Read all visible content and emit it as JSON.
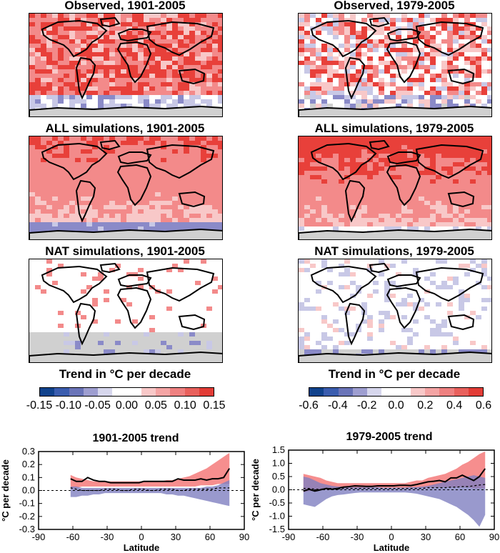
{
  "colors": {
    "land": "#d0d0d0",
    "ocean_blank": "#ffffff",
    "warm_dark": "#e8403a",
    "warm_mid": "#f38a8a",
    "warm_light": "#f8c8c8",
    "cool_light": "#c8c8e6",
    "cool_mid": "#8a8ac8",
    "cool_dark": "#1e4aa0",
    "band_pos": "#f57a7a",
    "band_neg": "#8080c0",
    "band_overlap": "#c88ab4"
  },
  "maps": [
    {
      "title": "Observed, 1901-2005",
      "pattern": "obs_long"
    },
    {
      "title": "Observed, 1979-2005",
      "pattern": "obs_short"
    },
    {
      "title": "ALL simulations, 1901-2005",
      "pattern": "all_long"
    },
    {
      "title": "ALL simulations, 1979-2005",
      "pattern": "all_short"
    },
    {
      "title": "NAT simulations, 1901-2005",
      "pattern": "nat_long"
    },
    {
      "title": "NAT simulations, 1979-2005",
      "pattern": "nat_short"
    }
  ],
  "colorbars": [
    {
      "title": "Trend in °C per decade",
      "ticks": [
        "-0.15",
        "-0.10",
        "-0.05",
        "0.00",
        "0.05",
        "0.10",
        "0.15"
      ],
      "colors": [
        "#10428c",
        "#3a5cae",
        "#6a74b8",
        "#9e9ed0",
        "#d6d6ec",
        "#ffffff",
        "#ffffff",
        "#f8c8c8",
        "#f4a4a4",
        "#ee8080",
        "#e8605c",
        "#e23c36"
      ]
    },
    {
      "title": "Trend in °C per decade",
      "ticks": [
        "-0.6",
        "-0.4",
        "-0.2",
        "0.0",
        "0.2",
        "0.4",
        "0.6"
      ],
      "colors": [
        "#10428c",
        "#3a5cae",
        "#6a74b8",
        "#9e9ed0",
        "#d6d6ec",
        "#ffffff",
        "#ffffff",
        "#f8c8c8",
        "#f4a4a4",
        "#ee8080",
        "#e8605c",
        "#e23c36"
      ]
    }
  ],
  "chart_data": [
    {
      "type": "line",
      "title": "1901-2005 trend",
      "xlabel": "Latitude",
      "ylabel": "°C per decade",
      "xlim": [
        -90,
        90
      ],
      "ylim": [
        -0.3,
        0.3
      ],
      "xticks": [
        "-90",
        "-60",
        "-30",
        "0",
        "30",
        "60",
        "90"
      ],
      "yticks": [
        "-0.3",
        "-0.2",
        "-0.1",
        "0.0",
        "0.1",
        "0.2",
        "0.3"
      ],
      "x": [
        -62,
        -57,
        -52,
        -47,
        -42,
        -37,
        -32,
        -27,
        -22,
        -17,
        -12,
        -7,
        -2,
        2,
        7,
        12,
        17,
        22,
        27,
        32,
        37,
        42,
        47,
        52,
        57,
        62,
        67,
        72,
        77
      ],
      "observed": [
        0.09,
        0.07,
        0.07,
        0.1,
        0.08,
        0.07,
        0.07,
        0.06,
        0.06,
        0.06,
        0.06,
        0.06,
        0.06,
        0.07,
        0.07,
        0.07,
        0.07,
        0.07,
        0.07,
        0.09,
        0.08,
        0.08,
        0.08,
        0.09,
        0.08,
        0.09,
        0.09,
        0.1,
        0.17
      ],
      "all_band": {
        "upper": [
          0.12,
          0.1,
          0.09,
          0.08,
          0.07,
          0.07,
          0.07,
          0.07,
          0.07,
          0.07,
          0.07,
          0.07,
          0.07,
          0.07,
          0.07,
          0.07,
          0.07,
          0.08,
          0.08,
          0.09,
          0.1,
          0.11,
          0.13,
          0.15,
          0.17,
          0.2,
          0.23,
          0.26,
          0.29
        ],
        "lower": [
          0.02,
          0.02,
          0.03,
          0.03,
          0.03,
          0.03,
          0.03,
          0.03,
          0.03,
          0.03,
          0.03,
          0.03,
          0.03,
          0.03,
          0.03,
          0.03,
          0.03,
          0.03,
          0.03,
          0.03,
          0.03,
          0.03,
          0.03,
          0.04,
          0.04,
          0.04,
          0.05,
          0.05,
          0.05
        ]
      },
      "nat_band": {
        "upper": [
          0.03,
          0.03,
          0.02,
          0.02,
          0.02,
          0.02,
          0.02,
          0.02,
          0.02,
          0.02,
          0.02,
          0.02,
          0.02,
          0.02,
          0.02,
          0.02,
          0.02,
          0.02,
          0.02,
          0.02,
          0.02,
          0.02,
          0.02,
          0.02,
          0.03,
          0.03,
          0.04,
          0.06,
          0.08
        ],
        "lower": [
          -0.05,
          -0.05,
          -0.04,
          -0.04,
          -0.03,
          -0.03,
          -0.02,
          -0.02,
          -0.02,
          -0.02,
          -0.02,
          -0.02,
          -0.02,
          -0.02,
          -0.02,
          -0.02,
          -0.02,
          -0.03,
          -0.03,
          -0.04,
          -0.04,
          -0.05,
          -0.06,
          -0.07,
          -0.08,
          -0.09,
          -0.1,
          -0.11,
          -0.12
        ]
      },
      "all_mean": [
        0.02,
        0.01,
        0.0,
        0.0,
        0.0,
        0.0,
        0.01,
        0.01,
        0.01,
        0.0,
        0.0,
        0.01,
        0.01,
        0.01,
        0.0,
        0.0,
        0.01,
        0.01,
        0.01,
        0.0,
        0.0,
        0.01,
        0.01,
        0.01,
        0.01,
        0.01,
        0.02,
        0.02,
        0.02
      ]
    },
    {
      "type": "line",
      "title": "1979-2005 trend",
      "xlabel": "Latitude",
      "ylabel": "°C per decade",
      "xlim": [
        -90,
        90
      ],
      "ylim": [
        -1.5,
        1.5
      ],
      "xticks": [
        "-90",
        "-60",
        "-30",
        "0",
        "30",
        "60",
        "90"
      ],
      "yticks": [
        "-1.5",
        "-1.0",
        "-0.5",
        "0.0",
        "0.5",
        "1.0",
        "1.5"
      ],
      "x": [
        -77,
        -72,
        -67,
        -62,
        -57,
        -52,
        -47,
        -42,
        -37,
        -32,
        -27,
        -22,
        -17,
        -12,
        -7,
        -2,
        2,
        7,
        12,
        17,
        22,
        27,
        32,
        37,
        42,
        47,
        52,
        57,
        62,
        67,
        72,
        77,
        82
      ],
      "observed": [
        -0.05,
        0.02,
        -0.05,
        0.0,
        0.05,
        0.02,
        0.05,
        0.1,
        0.12,
        0.15,
        0.14,
        0.13,
        0.13,
        0.15,
        0.15,
        0.15,
        0.15,
        0.17,
        0.17,
        0.16,
        0.2,
        0.25,
        0.3,
        0.32,
        0.35,
        0.3,
        0.45,
        0.45,
        0.55,
        0.45,
        0.35,
        0.5,
        0.8
      ],
      "all_band": {
        "upper": [
          0.6,
          0.55,
          0.5,
          0.45,
          0.35,
          0.3,
          0.25,
          0.25,
          0.25,
          0.25,
          0.25,
          0.25,
          0.25,
          0.25,
          0.25,
          0.25,
          0.25,
          0.25,
          0.25,
          0.3,
          0.35,
          0.35,
          0.45,
          0.5,
          0.55,
          0.6,
          0.7,
          0.8,
          0.95,
          1.05,
          1.2,
          1.35,
          1.45
        ],
        "lower": [
          -0.1,
          -0.05,
          -0.05,
          0.0,
          0.0,
          0.02,
          0.05,
          0.05,
          0.05,
          0.05,
          0.05,
          0.05,
          0.08,
          0.08,
          0.08,
          0.08,
          0.08,
          0.08,
          0.08,
          0.08,
          0.08,
          0.08,
          0.1,
          0.1,
          0.1,
          0.1,
          0.1,
          0.1,
          0.1,
          0.1,
          0.05,
          0.05,
          0.05
        ]
      },
      "nat_band": {
        "upper": [
          0.5,
          0.45,
          0.35,
          0.25,
          0.2,
          0.15,
          0.12,
          0.12,
          0.1,
          0.1,
          0.1,
          0.1,
          0.1,
          0.1,
          0.08,
          0.08,
          0.08,
          0.08,
          0.08,
          0.1,
          0.1,
          0.12,
          0.15,
          0.2,
          0.25,
          0.3,
          0.35,
          0.4,
          0.45,
          0.5,
          0.55,
          0.5,
          0.45
        ],
        "lower": [
          -0.55,
          -0.6,
          -0.65,
          -0.5,
          -0.35,
          -0.25,
          -0.2,
          -0.18,
          -0.15,
          -0.12,
          -0.1,
          -0.1,
          -0.1,
          -0.1,
          -0.1,
          -0.1,
          -0.1,
          -0.1,
          -0.1,
          -0.12,
          -0.15,
          -0.2,
          -0.25,
          -0.3,
          -0.35,
          -0.45,
          -0.55,
          -0.65,
          -0.8,
          -0.95,
          -1.15,
          -1.4,
          -0.95
        ]
      },
      "all_mean": [
        0.05,
        0.05,
        0.02,
        0.02,
        0.05,
        0.05,
        0.02,
        0.05,
        0.05,
        0.05,
        0.05,
        0.05,
        0.05,
        0.05,
        0.05,
        0.05,
        0.05,
        0.05,
        0.05,
        0.05,
        0.05,
        0.05,
        0.08,
        0.08,
        0.08,
        0.08,
        0.1,
        0.1,
        0.12,
        0.12,
        0.15,
        0.18,
        0.2
      ]
    }
  ]
}
